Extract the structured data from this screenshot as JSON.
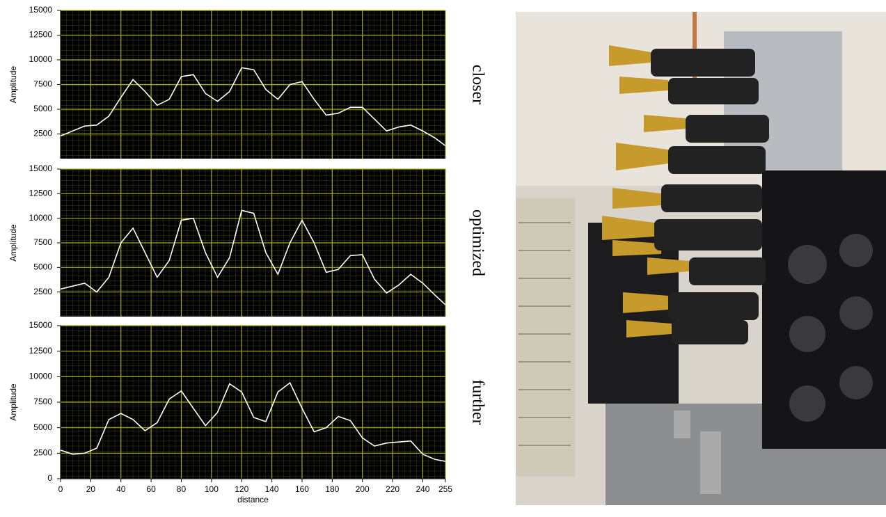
{
  "chart_data": [
    {
      "type": "line",
      "ylabel": "Amplitude",
      "annotation": "closer",
      "x": [
        0,
        8,
        16,
        24,
        32,
        40,
        48,
        56,
        64,
        72,
        80,
        88,
        96,
        104,
        112,
        120,
        128,
        136,
        144,
        152,
        160,
        168,
        176,
        184,
        192,
        200,
        208,
        216,
        224,
        232,
        240,
        248,
        255
      ],
      "values": [
        2300,
        2800,
        3300,
        3400,
        4300,
        6200,
        8000,
        6800,
        5400,
        6000,
        8300,
        8500,
        6600,
        5800,
        6800,
        9200,
        9000,
        7000,
        6000,
        7500,
        7800,
        6000,
        4400,
        4600,
        5200,
        5200,
        4000,
        2800,
        3200,
        3400,
        2800,
        2100,
        1300
      ],
      "color": "#ffffff",
      "xlim": [
        0,
        255
      ],
      "ylim": [
        0,
        15000
      ],
      "xticks": [
        0,
        20,
        40,
        60,
        80,
        100,
        120,
        140,
        160,
        180,
        200,
        220,
        240,
        255
      ],
      "yticks": [
        2500,
        5000,
        7500,
        10000,
        12500,
        15000
      ],
      "grid": true
    },
    {
      "type": "line",
      "ylabel": "Amplitude",
      "annotation": "optimized",
      "x": [
        0,
        8,
        16,
        24,
        32,
        40,
        48,
        56,
        64,
        72,
        80,
        88,
        96,
        104,
        112,
        120,
        128,
        136,
        144,
        152,
        160,
        168,
        176,
        184,
        192,
        200,
        208,
        216,
        224,
        232,
        240,
        248,
        255
      ],
      "values": [
        2800,
        3100,
        3400,
        2500,
        4000,
        7500,
        9000,
        6500,
        4000,
        5700,
        9800,
        10000,
        6500,
        4000,
        6000,
        10800,
        10500,
        6500,
        4300,
        7500,
        9800,
        7500,
        4500,
        4800,
        6200,
        6300,
        3800,
        2400,
        3200,
        4300,
        3400,
        2200,
        1200
      ],
      "color": "#ffffff",
      "xlim": [
        0,
        255
      ],
      "ylim": [
        0,
        15000
      ],
      "xticks": [
        0,
        20,
        40,
        60,
        80,
        100,
        120,
        140,
        160,
        180,
        200,
        220,
        240,
        255
      ],
      "yticks": [
        2500,
        5000,
        7500,
        10000,
        12500,
        15000
      ],
      "grid": true
    },
    {
      "type": "line",
      "ylabel": "Amplitude",
      "annotation": "further",
      "xlabel": "distance",
      "x": [
        0,
        8,
        16,
        24,
        32,
        40,
        48,
        56,
        64,
        72,
        80,
        88,
        96,
        104,
        112,
        120,
        128,
        136,
        144,
        152,
        160,
        168,
        176,
        184,
        192,
        200,
        208,
        216,
        224,
        232,
        240,
        248,
        255
      ],
      "values": [
        2800,
        2400,
        2500,
        3000,
        5800,
        6400,
        5800,
        4700,
        5500,
        7800,
        8600,
        6900,
        5200,
        6500,
        9300,
        8500,
        6000,
        5600,
        8500,
        9400,
        6900,
        4600,
        5000,
        6100,
        5700,
        4000,
        3200,
        3500,
        3600,
        3700,
        2400,
        1900,
        1700
      ],
      "color": "#ffffff",
      "xlim": [
        0,
        255
      ],
      "ylim": [
        0,
        15000
      ],
      "xticks": [
        0,
        20,
        40,
        60,
        80,
        100,
        120,
        140,
        160,
        180,
        200,
        220,
        240,
        255
      ],
      "yticks": [
        0,
        2500,
        5000,
        7500,
        10000,
        12500,
        15000
      ],
      "grid": true
    }
  ]
}
